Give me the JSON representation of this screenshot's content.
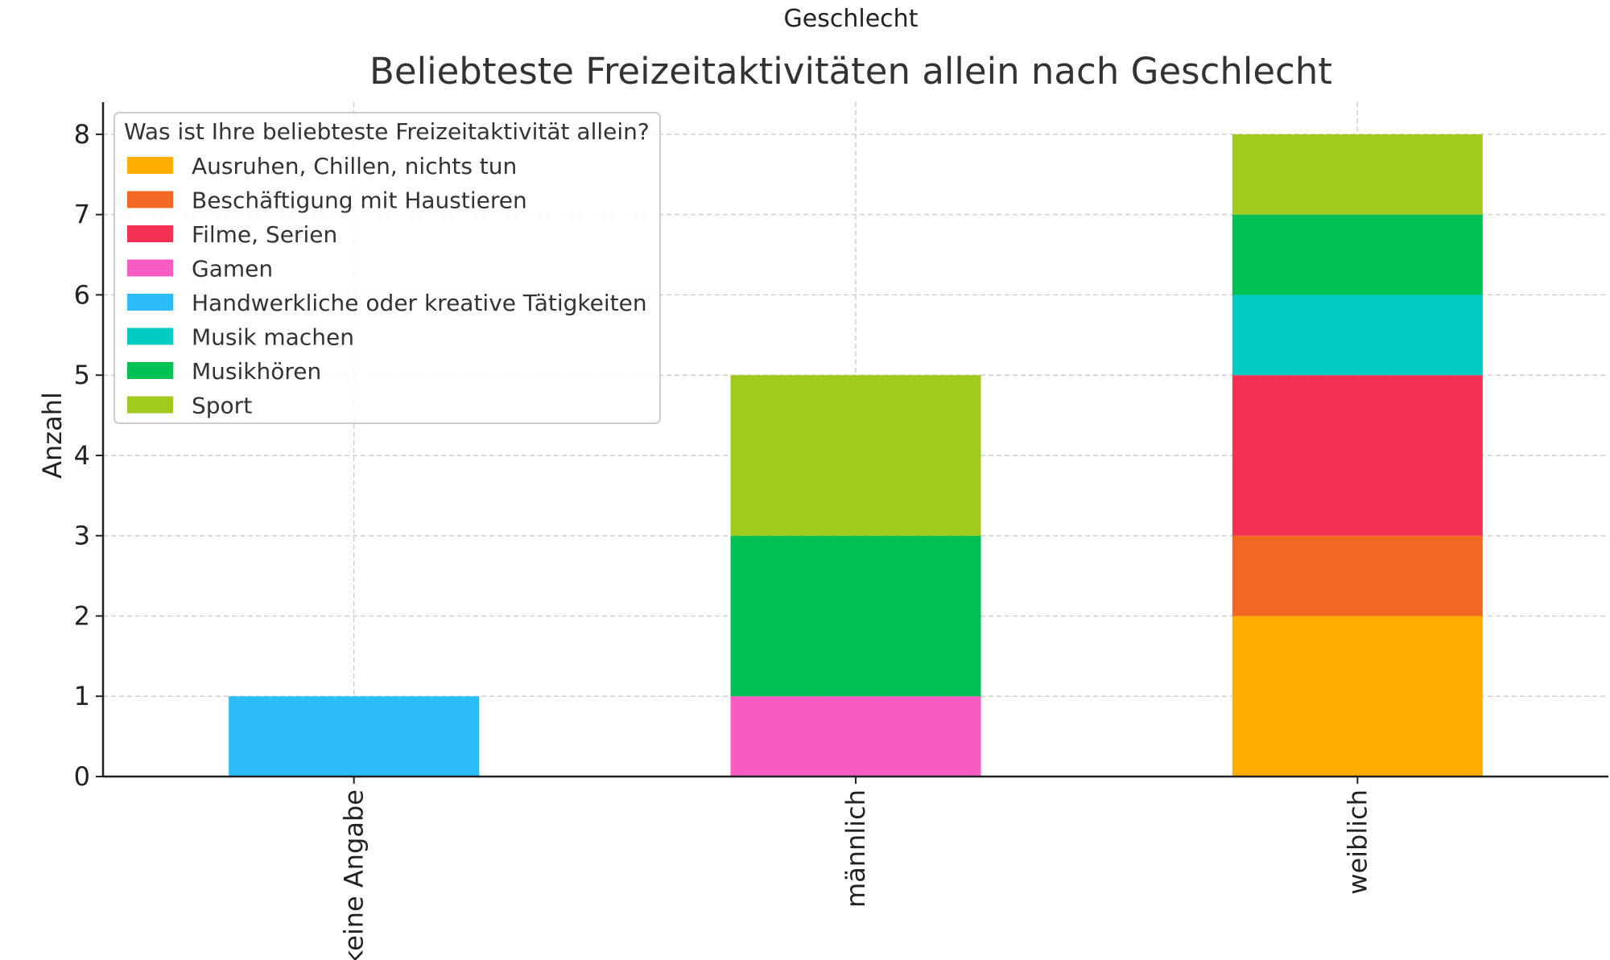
{
  "chart_data": {
    "type": "bar",
    "stacked": true,
    "supertitle": "Geschlecht",
    "title": "Beliebteste Freizeitaktivitäten allein nach Geschlecht",
    "xlabel": "",
    "ylabel": "Anzahl",
    "categories": [
      "keine Angabe",
      "männlich",
      "weiblich"
    ],
    "ylim": [
      0,
      8.4
    ],
    "yticks": [
      0,
      1,
      2,
      3,
      4,
      5,
      6,
      7,
      8
    ],
    "grid": true,
    "legend": {
      "title": "Was ist Ihre beliebteste Freizeitaktivität allein?",
      "placement": "top-left"
    },
    "series": [
      {
        "name": "Ausruhen, Chillen, nichts tun",
        "color": "#FFAE00",
        "values": [
          0,
          0,
          2
        ]
      },
      {
        "name": "Beschäftigung mit Haustieren",
        "color": "#F26722",
        "values": [
          0,
          0,
          1
        ]
      },
      {
        "name": "Filme, Serien",
        "color": "#F43152",
        "values": [
          0,
          0,
          2
        ]
      },
      {
        "name": "Gamen",
        "color": "#F95BC3",
        "values": [
          0,
          1,
          0
        ]
      },
      {
        "name": "Handwerkliche oder kreative Tätigkeiten",
        "color": "#2BBDFA",
        "values": [
          1,
          0,
          0
        ]
      },
      {
        "name": "Musik machen",
        "color": "#00CCC1",
        "values": [
          0,
          0,
          1
        ]
      },
      {
        "name": "Musikhören",
        "color": "#00C153",
        "values": [
          0,
          2,
          1
        ]
      },
      {
        "name": "Sport",
        "color": "#A0CB1E",
        "values": [
          0,
          2,
          1
        ]
      }
    ]
  }
}
